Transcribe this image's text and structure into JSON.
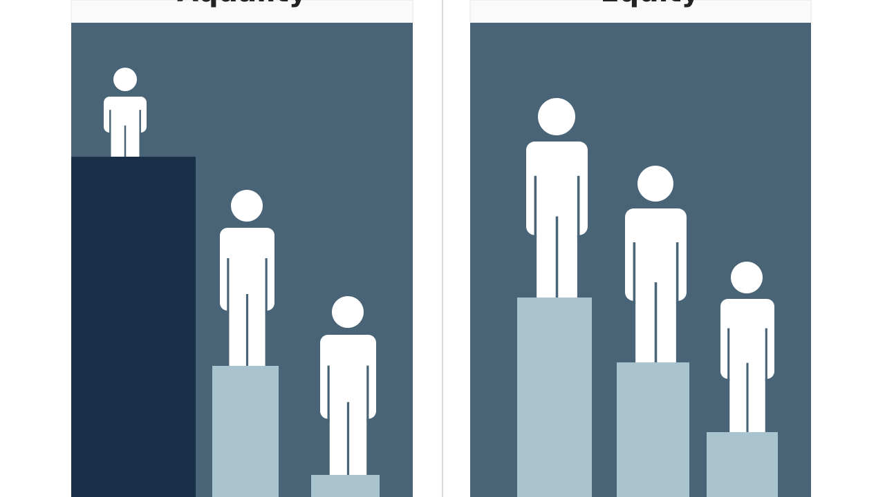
{
  "panels": [
    {
      "title": "Aquality"
    },
    {
      "title": "Equity"
    }
  ]
}
